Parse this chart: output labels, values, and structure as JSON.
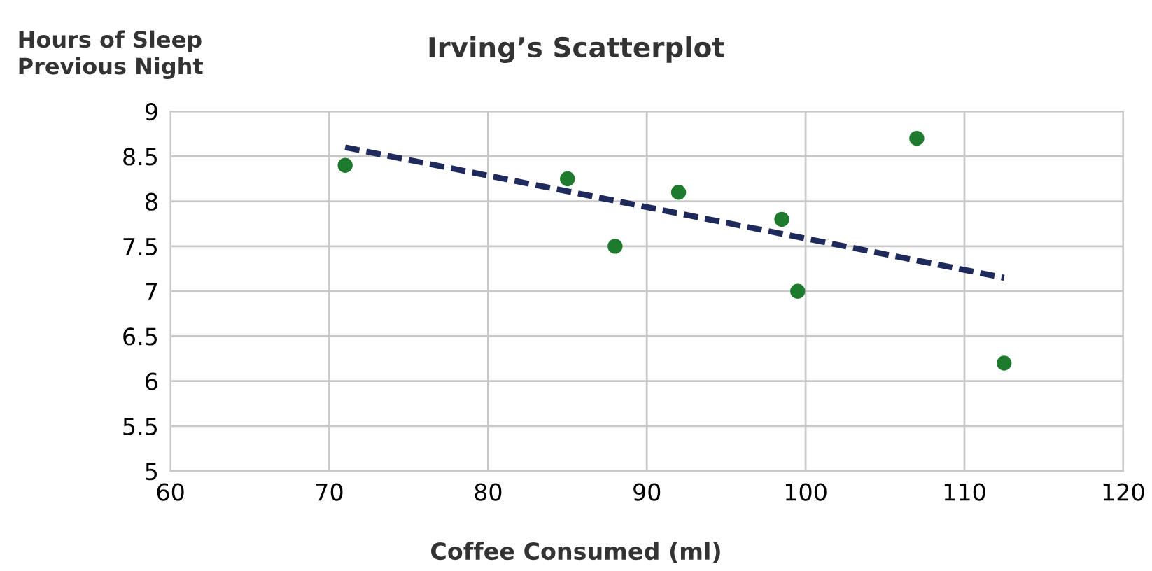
{
  "chart_data": {
    "type": "scatter",
    "title": "Irving’s Scatterplot",
    "xlabel": "Coffee Consumed (ml)",
    "ylabel": "Hours of Sleep\nPrevious Night",
    "series": [
      {
        "type": "scatter",
        "color": "#1e7b2e",
        "marker": "circle",
        "x": [
          71,
          85,
          88,
          92,
          98.5,
          99.5,
          107,
          112.5
        ],
        "values": [
          8.4,
          8.25,
          7.5,
          8.1,
          7.8,
          7.0,
          8.7,
          6.2
        ]
      },
      {
        "type": "line",
        "color": "#1f2a5c",
        "line_style": "dashed",
        "marker": "none",
        "x": [
          71,
          112.5
        ],
        "values": [
          8.6,
          7.15
        ]
      }
    ],
    "xlim": [
      60,
      120
    ],
    "xticks": [
      60,
      70,
      80,
      90,
      100,
      110,
      120
    ],
    "ylim": [
      5,
      9
    ],
    "yticks": [
      5,
      5.5,
      6,
      6.5,
      7,
      7.5,
      8,
      8.5,
      9
    ],
    "grid": true,
    "legend": false
  }
}
